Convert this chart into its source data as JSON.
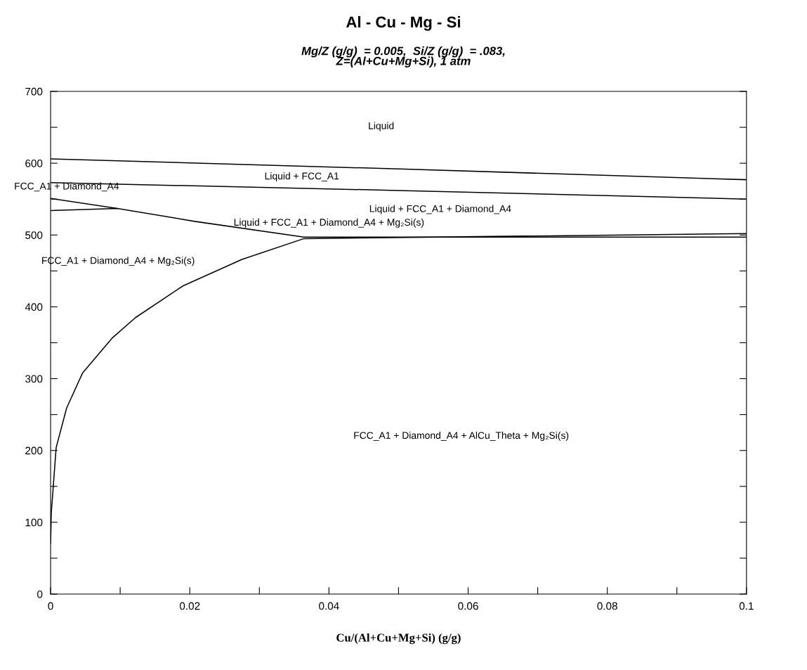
{
  "chart_data": {
    "type": "line",
    "title": "Al - Cu - Mg - Si",
    "subtitle": "Mg/Z (g/g)  = 0.005,  Si/Z (g/g)  = .083,\nZ=(Al+Cu+Mg+Si), 1 atm",
    "xlabel": "Cu/(Al+Cu+Mg+Si) (g/g)",
    "xlim": [
      0,
      0.1
    ],
    "ylim": [
      0,
      700
    ],
    "xticks": [
      0,
      {
        "value": 0.01,
        "label": null
      },
      0.02,
      {
        "value": 0.03,
        "label": null
      },
      0.04,
      {
        "value": 0.05,
        "label": null
      },
      0.06,
      {
        "value": 0.07,
        "label": null
      },
      0.08,
      {
        "value": 0.09,
        "label": null
      },
      0.1
    ],
    "yticks": [
      0,
      {
        "value": 50,
        "label": null
      },
      100,
      {
        "value": 150,
        "label": null
      },
      200,
      {
        "value": 250,
        "label": null
      },
      300,
      {
        "value": 350,
        "label": null
      },
      400,
      {
        "value": 450,
        "label": null
      },
      500,
      {
        "value": 550,
        "label": null
      },
      600,
      {
        "value": 650,
        "label": null
      },
      700
    ],
    "grid": false,
    "legend": false,
    "marker": "none",
    "line_style": "solid",
    "series": [
      {
        "color": "#000000",
        "x": [
          0,
          0.05,
          0.1
        ],
        "values": [
          606,
          592,
          577
        ]
      },
      {
        "color": "#000000",
        "x": [
          0,
          0.05,
          0.1
        ],
        "values": [
          573,
          562,
          550
        ]
      },
      {
        "color": "#000000",
        "x": [
          0,
          0.0096,
          0.0207,
          0.0364,
          0.1
        ],
        "values": [
          534,
          537,
          519,
          497,
          497
        ]
      },
      {
        "color": "#000000",
        "x": [
          0,
          0.0096
        ],
        "values": [
          551,
          537
        ]
      },
      {
        "color": "#000000",
        "x": [
          0,
          0.0001,
          0.0008,
          0.0023,
          0.0046,
          0.0089,
          0.0122,
          0.019,
          0.0275,
          0.0364,
          0.1
        ],
        "values": [
          70,
          113,
          204,
          259,
          308,
          357,
          385,
          429,
          466,
          495,
          502
        ]
      }
    ],
    "annotations": [
      "Liquid",
      "Liquid + FCC_A1",
      "Liquid + FCC_A1 + Diamond_A4",
      "Liquid + FCC_A1 + Diamond_A4 + Mg₂Si(s)",
      "FCC_A1 + Diamond_A4",
      "FCC_A1 + Diamond_A4 + Mg₂Si(s)",
      "FCC_A1 + Diamond_A4 + AlCu_Theta + Mg₂Si(s)"
    ]
  }
}
